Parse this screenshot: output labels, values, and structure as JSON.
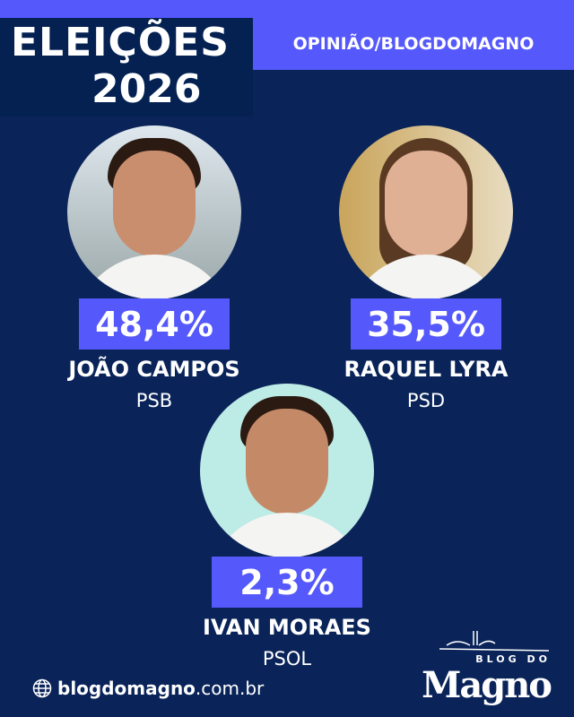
{
  "header": {
    "title_line1": "ELEIÇÕES",
    "title_line2": "2026",
    "banner": "OPINIÃO/BLOGDOMAGNO"
  },
  "candidates": [
    {
      "percent": "48,4%",
      "name": "JOÃO CAMPOS",
      "party": "PSB"
    },
    {
      "percent": "35,5%",
      "name": "RAQUEL LYRA",
      "party": "PSD"
    },
    {
      "percent": "2,3%",
      "name": "IVAN MORAES",
      "party": "PSOL"
    }
  ],
  "footer": {
    "site_bold": "blogdomagno",
    "site_rest": ".com.br",
    "icon": "globe-icon"
  },
  "logo": {
    "line1": "BLOG DO",
    "line2": "Magno"
  },
  "colors": {
    "background": "#0a2459",
    "accent": "#5558fb"
  }
}
